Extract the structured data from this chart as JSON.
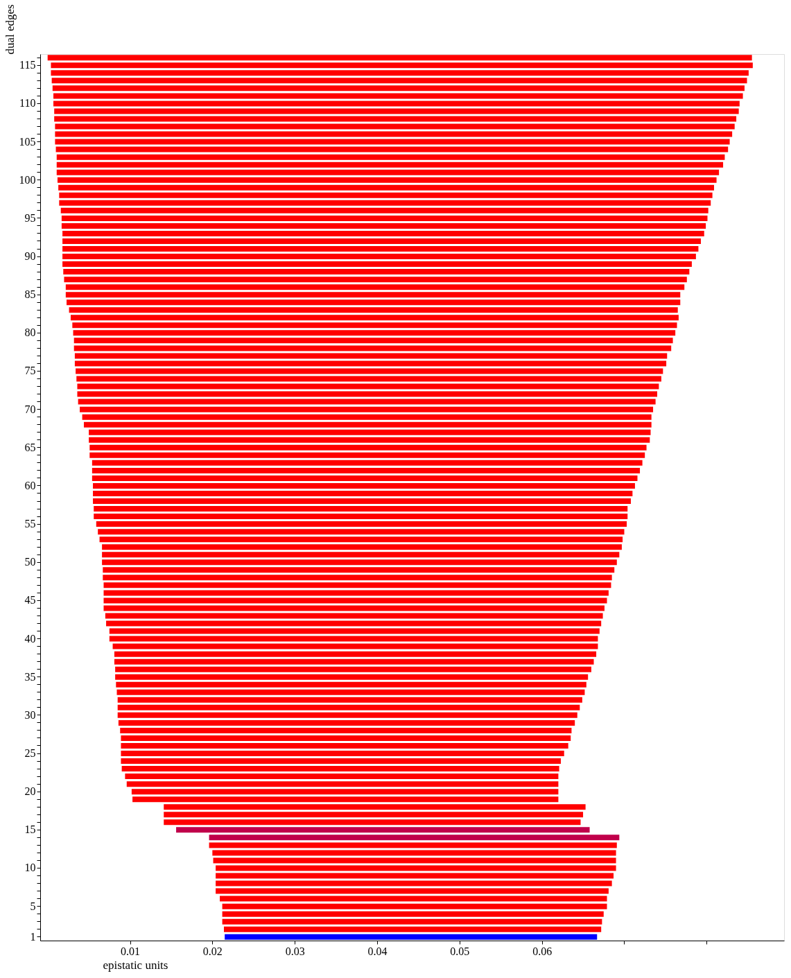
{
  "chart_data": {
    "type": "bar",
    "orientation": "horizontal",
    "xlabel": "epistatic units",
    "ylabel": "dual edges",
    "categories": [
      null,
      "115",
      null,
      null,
      null,
      null,
      "110",
      null,
      null,
      null,
      null,
      "105",
      null,
      null,
      null,
      null,
      "100",
      null,
      null,
      null,
      null,
      "95",
      null,
      null,
      null,
      null,
      "90",
      null,
      null,
      null,
      null,
      "85",
      null,
      null,
      null,
      null,
      "80",
      null,
      null,
      null,
      null,
      "75",
      null,
      null,
      null,
      null,
      "70",
      null,
      null,
      null,
      null,
      "65",
      null,
      null,
      null,
      null,
      "60",
      null,
      null,
      null,
      null,
      "55",
      null,
      null,
      null,
      null,
      "50",
      null,
      null,
      null,
      null,
      "45",
      null,
      null,
      null,
      null,
      "40",
      null,
      null,
      null,
      null,
      "35",
      null,
      null,
      null,
      null,
      "30",
      null,
      null,
      null,
      null,
      "25",
      null,
      null,
      null,
      null,
      "20",
      null,
      null,
      null,
      null,
      "15",
      null,
      null,
      null,
      null,
      "10",
      null,
      null,
      null,
      null,
      "5",
      null,
      null,
      null,
      "1"
    ],
    "base": [
      0.0,
      0.0004,
      0.0004,
      0.0005,
      0.0006,
      0.0007,
      0.0007,
      0.0008,
      0.0008,
      0.0009,
      0.0009,
      0.0009,
      0.001,
      0.0011,
      0.0011,
      0.0011,
      0.0012,
      0.0013,
      0.0014,
      0.0014,
      0.0016,
      0.0017,
      0.0017,
      0.0018,
      0.0018,
      0.0018,
      0.0018,
      0.0018,
      0.0019,
      0.002,
      0.0022,
      0.0022,
      0.0023,
      0.0026,
      0.0028,
      0.003,
      0.0031,
      0.0032,
      0.0032,
      0.0033,
      0.0033,
      0.0034,
      0.0035,
      0.0036,
      0.0036,
      0.0037,
      0.0039,
      0.0042,
      0.0044,
      0.005,
      0.005,
      0.0051,
      0.0051,
      0.0054,
      0.0054,
      0.0054,
      0.0055,
      0.0055,
      0.0055,
      0.0056,
      0.0056,
      0.0059,
      0.0061,
      0.0063,
      0.0066,
      0.0066,
      0.0066,
      0.0067,
      0.0067,
      0.0068,
      0.0068,
      0.0068,
      0.0068,
      0.007,
      0.0071,
      0.0075,
      0.0075,
      0.0079,
      0.0081,
      0.0081,
      0.0082,
      0.0082,
      0.0083,
      0.0084,
      0.0085,
      0.0085,
      0.0085,
      0.0086,
      0.0088,
      0.0089,
      0.0089,
      0.0089,
      0.0089,
      0.009,
      0.0094,
      0.0096,
      0.0102,
      0.0103,
      0.0141,
      0.0141,
      0.0141,
      0.0156,
      0.0196,
      0.0196,
      0.02,
      0.0201,
      0.0204,
      0.0204,
      0.0204,
      0.0204,
      0.0209,
      0.0212,
      0.0212,
      0.0212,
      0.0214,
      0.0215
    ],
    "values": [
      0.0855,
      0.0852,
      0.0847,
      0.0844,
      0.084,
      0.0837,
      0.0833,
      0.0831,
      0.0828,
      0.0825,
      0.0822,
      0.0819,
      0.0816,
      0.0811,
      0.0809,
      0.0804,
      0.08,
      0.0796,
      0.0793,
      0.0791,
      0.0786,
      0.0784,
      0.0782,
      0.0779,
      0.0775,
      0.0772,
      0.0769,
      0.0764,
      0.076,
      0.0756,
      0.0751,
      0.0746,
      0.0745,
      0.0739,
      0.0738,
      0.0734,
      0.0731,
      0.0727,
      0.0725,
      0.0719,
      0.0718,
      0.0713,
      0.071,
      0.0706,
      0.0704,
      0.0701,
      0.0696,
      0.0691,
      0.0689,
      0.0682,
      0.0681,
      0.0676,
      0.0674,
      0.0668,
      0.0665,
      0.0662,
      0.0658,
      0.0655,
      0.0653,
      0.0648,
      0.0648,
      0.0644,
      0.0639,
      0.0635,
      0.0631,
      0.0628,
      0.0625,
      0.0621,
      0.0618,
      0.0616,
      0.0613,
      0.0611,
      0.0608,
      0.0604,
      0.0601,
      0.0595,
      0.0593,
      0.0589,
      0.0585,
      0.0582,
      0.0578,
      0.0574,
      0.0571,
      0.0568,
      0.0564,
      0.0561,
      0.0558,
      0.0554,
      0.0548,
      0.0546,
      0.0543,
      0.0538,
      0.0534,
      0.0531,
      0.0526,
      0.0524,
      0.0518,
      0.0517,
      0.0512,
      0.0509,
      0.0506,
      0.0502,
      0.0498,
      0.0495,
      0.049,
      0.0489,
      0.0486,
      0.0483,
      0.0481,
      0.0477,
      0.047,
      0.0467,
      0.0463,
      0.0461,
      0.0458,
      0.0452
    ],
    "colors": [
      "#ff0000",
      "#ff0000",
      "#ff0000",
      "#ff0000",
      "#ff0000",
      "#ff0000",
      "#ff0000",
      "#ff0000",
      "#ff0000",
      "#ff0000",
      "#ff0000",
      "#ff0000",
      "#ff0000",
      "#ff0000",
      "#ff0000",
      "#ff0000",
      "#ff0000",
      "#ff0000",
      "#ff0000",
      "#ff0000",
      "#ff0000",
      "#ff0000",
      "#ff0000",
      "#ff0000",
      "#ff0000",
      "#ff0000",
      "#ff0000",
      "#ff0000",
      "#ff0000",
      "#ff0000",
      "#ff0000",
      "#ff0000",
      "#ff0000",
      "#ff0000",
      "#ff0000",
      "#ff0000",
      "#ff0000",
      "#ff0000",
      "#ff0000",
      "#ff0000",
      "#ff0000",
      "#ff0000",
      "#ff0000",
      "#ff0000",
      "#ff0000",
      "#ff0000",
      "#ff0000",
      "#ff0000",
      "#ff0000",
      "#ff0000",
      "#ff0000",
      "#ff0000",
      "#ff0000",
      "#ff0000",
      "#ff0000",
      "#ff0000",
      "#ff0000",
      "#ff0000",
      "#ff0000",
      "#ff0000",
      "#ff0000",
      "#ff0000",
      "#ff0000",
      "#ff0000",
      "#ff0000",
      "#ff0000",
      "#ff0000",
      "#ff0000",
      "#ff0000",
      "#ff0000",
      "#ff0000",
      "#ff0000",
      "#ff0000",
      "#ff0000",
      "#ff0000",
      "#ff0000",
      "#ff0000",
      "#ff0000",
      "#ff0000",
      "#ff0000",
      "#ff0000",
      "#ff0000",
      "#ff0000",
      "#ff0000",
      "#ff0000",
      "#ff0000",
      "#ff0000",
      "#ff0000",
      "#ff0000",
      "#ff0000",
      "#ff0000",
      "#ff0000",
      "#ff0000",
      "#ff0000",
      "#ff0000",
      "#ff0000",
      "#ff0000",
      "#ff0000",
      "#ff0000",
      "#ff0000",
      "#ff0000",
      "#c0004a",
      "#c0004a",
      "#ff0000",
      "#ff0000",
      "#ff0000",
      "#ff0000",
      "#ff0000",
      "#ff0000",
      "#ff0000",
      "#ff0000",
      "#ff0000",
      "#ff0000",
      "#ff0000",
      "#ff0000",
      "#0000ff"
    ],
    "xlim": [
      -0.0009,
      0.0894
    ],
    "xticks": [
      0.01,
      0.02,
      0.03,
      0.04,
      0.05,
      0.06,
      {
        "value": 0.07,
        "label": null
      },
      {
        "value": 0.08,
        "label": null
      }
    ]
  }
}
